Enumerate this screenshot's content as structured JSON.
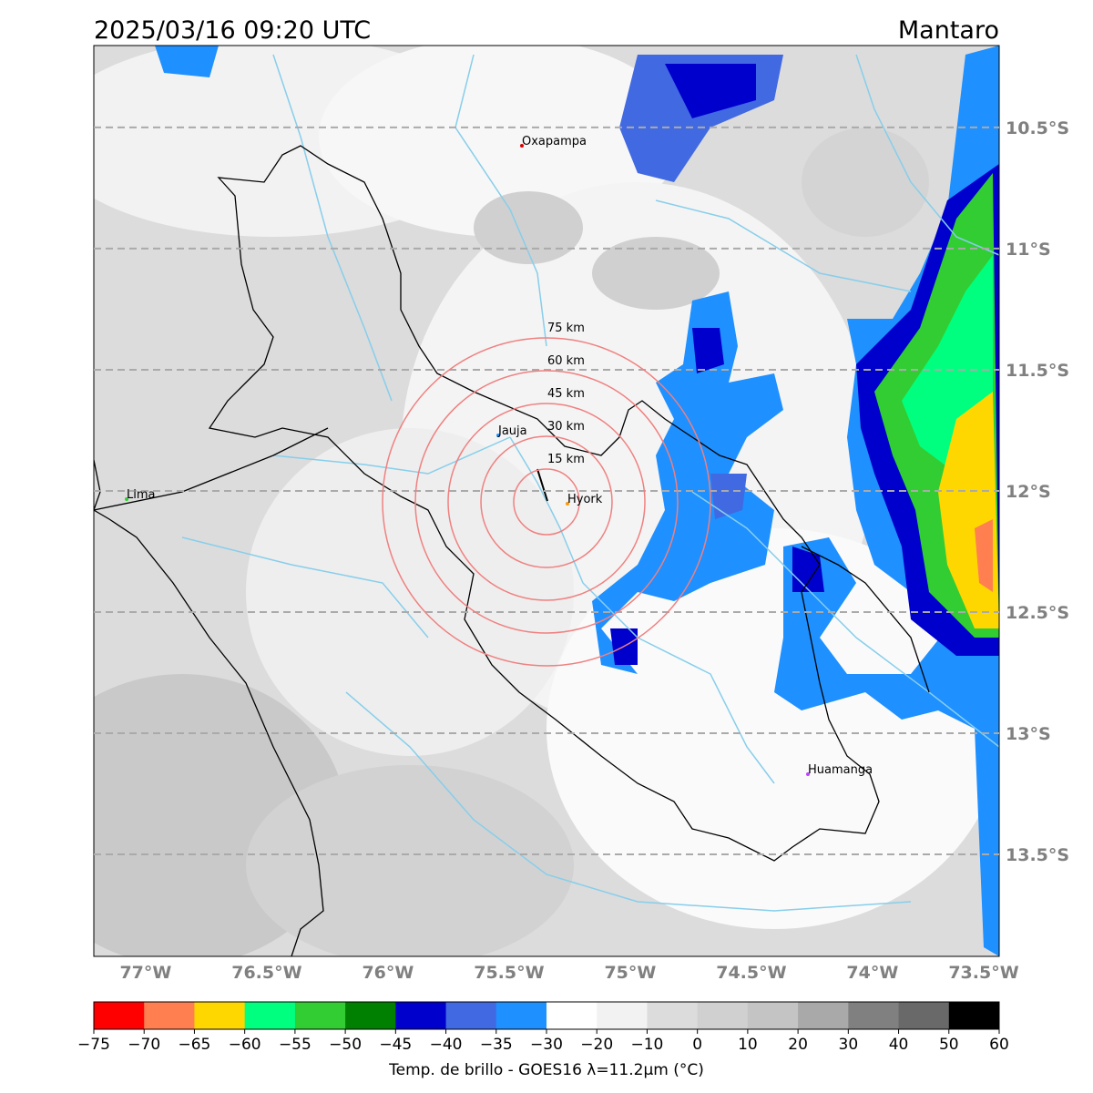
{
  "header": {
    "title": "2025/03/16 09:20 UTC",
    "region": "Mantaro"
  },
  "map": {
    "lonlim": [
      -77.214,
      -73.477
    ],
    "latlim": [
      -13.921,
      -10.162
    ],
    "lat_ticks": [
      {
        "value": -10.5,
        "label": "10.5°S"
      },
      {
        "value": -11,
        "label": "11°S"
      },
      {
        "value": -11.5,
        "label": "11.5°S"
      },
      {
        "value": -12,
        "label": "12°S"
      },
      {
        "value": -12.5,
        "label": "12.5°S"
      },
      {
        "value": -13,
        "label": "13°S"
      },
      {
        "value": -13.5,
        "label": "13.5°S"
      }
    ],
    "lon_ticks": [
      {
        "value": -77,
        "label": "77°W"
      },
      {
        "value": -76.5,
        "label": "76.5°W"
      },
      {
        "value": -76,
        "label": "76°W"
      },
      {
        "value": -75.5,
        "label": "75.5°W"
      },
      {
        "value": -75,
        "label": "75°W"
      },
      {
        "value": -74.5,
        "label": "74.5°W"
      },
      {
        "value": -74,
        "label": "74°W"
      },
      {
        "value": -73.5,
        "label": "73.5°W"
      }
    ],
    "grid": true,
    "rings": [
      "15 km",
      "30 km",
      "45 km",
      "60 km",
      "75 km"
    ],
    "cities": [
      "Oxapampa",
      "Jauja",
      "Hyork",
      "Lima",
      "Huamanga"
    ]
  },
  "colorbar": {
    "label": "Temp. de brillo - GOES16 λ=11.2μm (°C)",
    "ticks": [
      {
        "value": -75,
        "label": "−75"
      },
      {
        "value": -70,
        "label": "−70"
      },
      {
        "value": -65,
        "label": "−65"
      },
      {
        "value": -60,
        "label": "−60"
      },
      {
        "value": -55,
        "label": "−55"
      },
      {
        "value": -50,
        "label": "−50"
      },
      {
        "value": -45,
        "label": "−45"
      },
      {
        "value": -40,
        "label": "−40"
      },
      {
        "value": -35,
        "label": "−35"
      },
      {
        "value": -30,
        "label": "−30"
      },
      {
        "value": -20,
        "label": "−20"
      },
      {
        "value": -10,
        "label": "−10"
      },
      0,
      10,
      20,
      30,
      40,
      50,
      60
    ],
    "colors": [
      "#ff0000",
      "#ff7f50",
      "#ffd700",
      "#00ff7f",
      "#32cd32",
      "#008000",
      "#0000cd",
      "#4169e1",
      "#1e90ff",
      "#ffffff",
      "#f2f2f2",
      "#dcdcdc",
      "#d0d0d0",
      "#c4c4c4",
      "#a9a9a9",
      "#808080",
      "#696969",
      "#000000"
    ]
  }
}
